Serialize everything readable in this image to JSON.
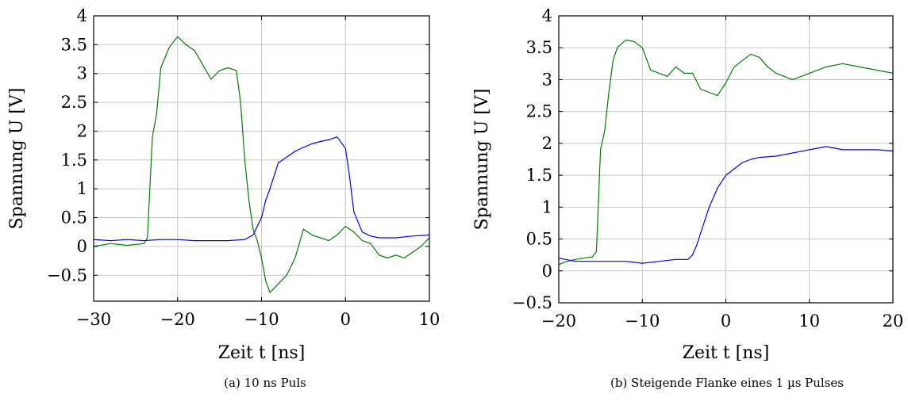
{
  "chart_data": [
    {
      "type": "line",
      "caption": "(a) 10 ns Puls",
      "xlabel": "Zeit t [ns]",
      "ylabel": "Spannung U [V]",
      "xlim": [
        -30,
        10
      ],
      "ylim": [
        -0.95,
        4
      ],
      "xticks": [
        -30,
        -20,
        -10,
        0,
        10
      ],
      "xtick_labels": [
        "−30",
        "−20",
        "−10",
        "0",
        "10"
      ],
      "yticks": [
        -0.5,
        0,
        0.5,
        1,
        1.5,
        2,
        2.5,
        3,
        3.5,
        4
      ],
      "ytick_labels": [
        "−0.5",
        "0",
        "0.5",
        "1",
        "1.5",
        "2",
        "2.5",
        "3",
        "3.5",
        "4"
      ],
      "grid": true,
      "series": [
        {
          "color": "#007f00",
          "x": [
            -30,
            -28,
            -26,
            -24,
            -23.6,
            -23,
            -22.5,
            -22,
            -21,
            -20.5,
            -20,
            -19,
            -18,
            -17,
            -16,
            -15,
            -14,
            -13,
            -12.5,
            -12,
            -11.5,
            -11,
            -10.5,
            -10,
            -9.5,
            -9,
            -8,
            -7,
            -6,
            -5,
            -4,
            -3,
            -2,
            -1,
            0,
            1,
            2,
            3,
            4,
            5,
            6,
            7,
            8,
            9,
            10
          ],
          "y": [
            0,
            0.05,
            0.02,
            0.05,
            0.15,
            1.9,
            2.3,
            3.1,
            3.45,
            3.55,
            3.64,
            3.5,
            3.4,
            3.15,
            2.9,
            3.05,
            3.1,
            3.05,
            2.5,
            1.5,
            0.8,
            0.3,
            0.1,
            -0.2,
            -0.6,
            -0.8,
            -0.65,
            -0.5,
            -0.2,
            0.3,
            0.2,
            0.15,
            0.1,
            0.2,
            0.35,
            0.25,
            0.1,
            0.05,
            -0.15,
            -0.2,
            -0.15,
            -0.2,
            -0.1,
            0,
            0.15
          ]
        },
        {
          "color": "#0000ff",
          "x": [
            -30,
            -28,
            -26,
            -24,
            -22,
            -20,
            -18,
            -16,
            -14,
            -12,
            -11,
            -10,
            -9.5,
            -9,
            -8,
            -7,
            -6,
            -5,
            -4,
            -3,
            -2,
            -1,
            0,
            0.5,
            1,
            2,
            3,
            4,
            6,
            8,
            10
          ],
          "y": [
            0.12,
            0.1,
            0.12,
            0.1,
            0.12,
            0.12,
            0.1,
            0.1,
            0.1,
            0.12,
            0.2,
            0.5,
            0.8,
            1.0,
            1.45,
            1.55,
            1.65,
            1.72,
            1.78,
            1.82,
            1.85,
            1.9,
            1.7,
            1.2,
            0.6,
            0.25,
            0.18,
            0.15,
            0.15,
            0.18,
            0.2
          ]
        }
      ]
    },
    {
      "type": "line",
      "caption": "(b) Steigende Flanke eines 1 µs Pulses",
      "xlabel": "Zeit t [ns]",
      "ylabel": "Spannung U [V]",
      "xlim": [
        -20,
        20
      ],
      "ylim": [
        -0.5,
        4
      ],
      "xticks": [
        -20,
        -10,
        0,
        10,
        20
      ],
      "xtick_labels": [
        "−20",
        "−10",
        "0",
        "10",
        "20"
      ],
      "yticks": [
        -0.5,
        0,
        0.5,
        1,
        1.5,
        2,
        2.5,
        3,
        3.5,
        4
      ],
      "ytick_labels": [
        "−0.5",
        "0",
        "0.5",
        "1",
        "1.5",
        "2",
        "2.5",
        "3",
        "3.5",
        "4"
      ],
      "grid": true,
      "series": [
        {
          "color": "#007f00",
          "x": [
            -20,
            -19,
            -18,
            -17,
            -16,
            -15.5,
            -15,
            -14.5,
            -14,
            -13.5,
            -13,
            -12,
            -11,
            -10,
            -9,
            -8,
            -7,
            -6,
            -5,
            -4,
            -3,
            -2,
            -1,
            0,
            1,
            2,
            3,
            4,
            5,
            6,
            7,
            8,
            10,
            12,
            14,
            16,
            18,
            20
          ],
          "y": [
            0.1,
            0.15,
            0.18,
            0.2,
            0.22,
            0.3,
            1.9,
            2.2,
            2.8,
            3.3,
            3.5,
            3.62,
            3.6,
            3.5,
            3.15,
            3.1,
            3.05,
            3.2,
            3.1,
            3.1,
            2.85,
            2.8,
            2.75,
            2.95,
            3.2,
            3.3,
            3.4,
            3.35,
            3.2,
            3.1,
            3.05,
            3.0,
            3.1,
            3.2,
            3.25,
            3.2,
            3.15,
            3.1
          ]
        },
        {
          "color": "#0000ff",
          "x": [
            -20,
            -18,
            -16,
            -14,
            -12,
            -10,
            -8,
            -6,
            -4.5,
            -4,
            -3.5,
            -3,
            -2.5,
            -2,
            -1,
            0,
            1,
            2,
            3,
            4,
            6,
            8,
            10,
            12,
            14,
            16,
            18,
            20
          ],
          "y": [
            0.2,
            0.15,
            0.15,
            0.15,
            0.15,
            0.12,
            0.15,
            0.18,
            0.18,
            0.25,
            0.4,
            0.6,
            0.8,
            1.0,
            1.3,
            1.5,
            1.6,
            1.7,
            1.75,
            1.78,
            1.8,
            1.85,
            1.9,
            1.95,
            1.9,
            1.9,
            1.9,
            1.88
          ]
        }
      ]
    }
  ]
}
